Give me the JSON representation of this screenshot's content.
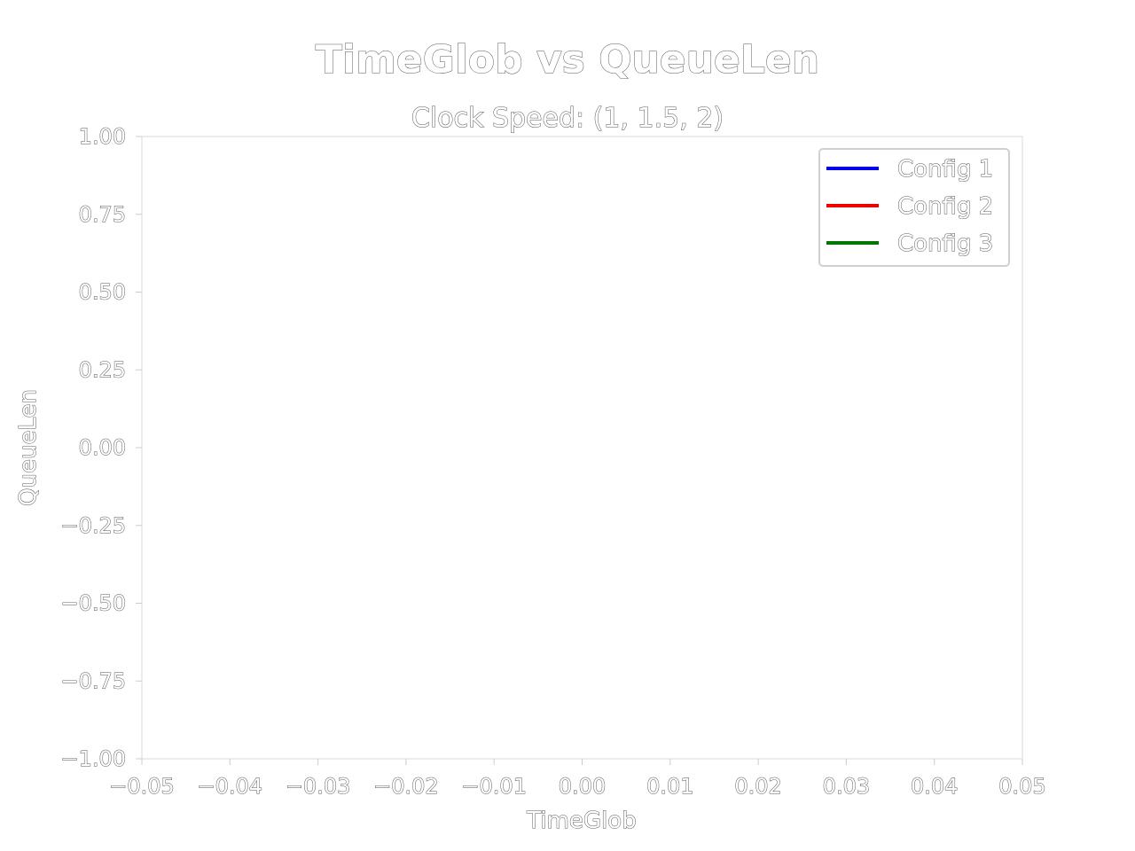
{
  "chart_data": {
    "type": "line",
    "title": "TimeGlob vs QueueLen",
    "subtitle": "Clock Speed: (1, 1.5, 2)",
    "xlabel": "TimeGlob",
    "ylabel": "QueueLen",
    "xlim": [
      -0.05,
      0.05
    ],
    "ylim": [
      -1.0,
      1.0
    ],
    "x_ticks": [
      -0.05,
      -0.04,
      -0.03,
      -0.02,
      -0.01,
      0.0,
      0.01,
      0.02,
      0.03,
      0.04,
      0.05
    ],
    "x_tick_labels": [
      "−0.05",
      "−0.04",
      "−0.03",
      "−0.02",
      "−0.01",
      "0.00",
      "0.01",
      "0.02",
      "0.03",
      "0.04",
      "0.05"
    ],
    "y_ticks": [
      1.0,
      0.75,
      0.5,
      0.25,
      0.0,
      -0.25,
      -0.5,
      -0.75,
      -1.0
    ],
    "y_tick_labels": [
      "1.00",
      "0.75",
      "0.50",
      "0.25",
      "0.00",
      "−0.25",
      "−0.50",
      "−0.75",
      "−1.00"
    ],
    "grid": false,
    "legend_position": "top-right",
    "series": [
      {
        "name": "Config 1",
        "color": "#0000ee",
        "x": [],
        "y": []
      },
      {
        "name": "Config 2",
        "color": "#ee0000",
        "x": [],
        "y": []
      },
      {
        "name": "Config 3",
        "color": "#007700",
        "x": [],
        "y": []
      }
    ]
  }
}
